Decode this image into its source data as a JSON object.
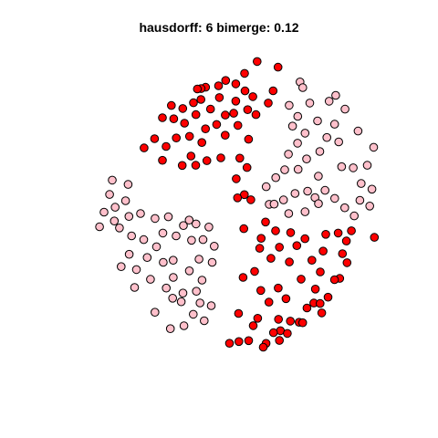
{
  "chart_data": {
    "type": "scatter",
    "title": "hausdorff: 6 bimerge: 0.12",
    "xlabel": "",
    "ylabel": "",
    "axes_shown": false,
    "grid": false,
    "legend": "none",
    "xlim": [
      0,
      1
    ],
    "ylim": [
      0,
      1
    ],
    "series": [
      {
        "color": "#ff0000",
        "points": [
          [
            0.6155,
            0.9768
          ],
          [
            0.6786,
            0.9595
          ],
          [
            0.5774,
            0.9407
          ],
          [
            0.5203,
            0.919
          ],
          [
            0.4987,
            0.9031
          ],
          [
            0.5508,
            0.9089
          ],
          [
            0.4595,
            0.8987
          ],
          [
            0.4458,
            0.8945
          ],
          [
            0.4345,
            0.8933
          ],
          [
            0.5787,
            0.8874
          ],
          [
            0.6639,
            0.8879
          ],
          [
            0.5012,
            0.8672
          ],
          [
            0.6025,
            0.8701
          ],
          [
            0.4452,
            0.8614
          ],
          [
            0.5507,
            0.8564
          ],
          [
            0.4226,
            0.8514
          ],
          [
            0.6492,
            0.8507
          ],
          [
            0.3558,
            0.8431
          ],
          [
            0.3904,
            0.8342
          ],
          [
            0.4742,
            0.8324
          ],
          [
            0.5868,
            0.8304
          ],
          [
            0.5446,
            0.8197
          ],
          [
            0.612,
            0.8155
          ],
          [
            0.4302,
            0.8155
          ],
          [
            0.519,
            0.8141
          ],
          [
            0.3286,
            0.806
          ],
          [
            0.3629,
            0.8027
          ],
          [
            0.3955,
            0.7896
          ],
          [
            0.4929,
            0.7857
          ],
          [
            0.5572,
            0.7828
          ],
          [
            0.4592,
            0.7723
          ],
          [
            0.5189,
            0.7529
          ],
          [
            0.4108,
            0.7497
          ],
          [
            0.305,
            0.7424
          ],
          [
            0.3707,
            0.7445
          ],
          [
            0.5895,
            0.7407
          ],
          [
            0.4481,
            0.7307
          ],
          [
            0.2732,
            0.7143
          ],
          [
            0.3399,
            0.7187
          ],
          [
            0.4153,
            0.6897
          ],
          [
            0.3286,
            0.6766
          ],
          [
            0.5054,
            0.6841
          ],
          [
            0.5631,
            0.6835
          ],
          [
            0.4632,
            0.6755
          ],
          [
            0.3888,
            0.6613
          ],
          [
            0.5848,
            0.6548
          ],
          [
            0.4295,
            0.6618
          ],
          [
            0.5521,
            0.6209
          ],
          [
            0.5768,
            0.5725
          ],
          [
            0.5562,
            0.5629
          ],
          [
            0.5965,
            0.557
          ],
          [
            0.6408,
            0.4896
          ],
          [
            0.5751,
            0.4693
          ],
          [
            0.6713,
            0.4629
          ],
          [
            0.7169,
            0.4574
          ],
          [
            0.9008,
            0.4628
          ],
          [
            0.8608,
            0.4559
          ],
          [
            0.9705,
            0.4429
          ],
          [
            0.8232,
            0.452
          ],
          [
            0.6276,
            0.4399
          ],
          [
            0.7601,
            0.4389
          ],
          [
            0.683,
            0.4131
          ],
          [
            0.8855,
            0.4319
          ],
          [
            0.6233,
            0.4097
          ],
          [
            0.7355,
            0.4177
          ],
          [
            0.8152,
            0.4011
          ],
          [
            0.8737,
            0.3933
          ],
          [
            0.6573,
            0.3793
          ],
          [
            0.7812,
            0.3733
          ],
          [
            0.713,
            0.3682
          ],
          [
            0.8877,
            0.3659
          ],
          [
            0.6076,
            0.3395
          ],
          [
            0.8066,
            0.338
          ],
          [
            0.573,
            0.3213
          ],
          [
            0.7487,
            0.3161
          ],
          [
            0.8655,
            0.3184
          ],
          [
            0.8496,
            0.3145
          ],
          [
            0.7917,
            0.2859
          ],
          [
            0.6793,
            0.2889
          ],
          [
            0.6266,
            0.2816
          ],
          [
            0.7029,
            0.2568
          ],
          [
            0.8301,
            0.2613
          ],
          [
            0.6512,
            0.2462
          ],
          [
            0.7871,
            0.2434
          ],
          [
            0.8061,
            0.2421
          ],
          [
            0.7662,
            0.2286
          ],
          [
            0.811,
            0.2135
          ],
          [
            0.5592,
            0.2119
          ],
          [
            0.617,
            0.1973
          ],
          [
            0.6802,
            0.1943
          ],
          [
            0.7426,
            0.185
          ],
          [
            0.7161,
            0.1886
          ],
          [
            0.7534,
            0.1837
          ],
          [
            0.6036,
            0.1747
          ],
          [
            0.6858,
            0.1595
          ],
          [
            0.6649,
            0.1535
          ],
          [
            0.707,
            0.1512
          ],
          [
            0.5897,
            0.1295
          ],
          [
            0.6425,
            0.1211
          ],
          [
            0.683,
            0.13
          ],
          [
            0.5319,
            0.1212
          ],
          [
            0.6341,
            0.1095
          ],
          [
            0.5603,
            0.1266
          ]
        ]
      },
      {
        "color": "#ffc0cb",
        "points": [
          [
            0.7453,
            0.9146
          ],
          [
            0.7536,
            0.8976
          ],
          [
            0.8534,
            0.8739
          ],
          [
            0.8334,
            0.8561
          ],
          [
            0.7749,
            0.8506
          ],
          [
            0.7123,
            0.8437
          ],
          [
            0.8815,
            0.8321
          ],
          [
            0.7385,
            0.8102
          ],
          [
            0.7984,
            0.7964
          ],
          [
            0.8499,
            0.7864
          ],
          [
            0.7227,
            0.7807
          ],
          [
            0.9209,
            0.7657
          ],
          [
            0.7604,
            0.7592
          ],
          [
            0.8265,
            0.7461
          ],
          [
            0.8624,
            0.7326
          ],
          [
            0.7379,
            0.7287
          ],
          [
            0.9681,
            0.7164
          ],
          [
            0.8052,
            0.7036
          ],
          [
            0.7102,
            0.6955
          ],
          [
            0.7652,
            0.681
          ],
          [
            0.9489,
            0.6617
          ],
          [
            0.8713,
            0.6574
          ],
          [
            0.6988,
            0.6479
          ],
          [
            0.7396,
            0.6493
          ],
          [
            0.9064,
            0.6539
          ],
          [
            0.8009,
            0.6286
          ],
          [
            0.6717,
            0.624
          ],
          [
            0.9305,
            0.6063
          ],
          [
            0.6429,
            0.5966
          ],
          [
            0.8211,
            0.5855
          ],
          [
            0.9631,
            0.5891
          ],
          [
            0.7681,
            0.5831
          ],
          [
            0.7302,
            0.5763
          ],
          [
            0.7905,
            0.5638
          ],
          [
            0.6954,
            0.5564
          ],
          [
            0.9265,
            0.5553
          ],
          [
            0.8502,
            0.5611
          ],
          [
            0.6519,
            0.5433
          ],
          [
            0.6669,
            0.5438
          ],
          [
            0.8011,
            0.5452
          ],
          [
            0.8808,
            0.5328
          ],
          [
            0.9564,
            0.538
          ],
          [
            0.7606,
            0.5204
          ],
          [
            0.9095,
            0.5079
          ],
          [
            0.7111,
            0.5151
          ],
          [
            0.1768,
            0.6166
          ],
          [
            0.2249,
            0.6037
          ],
          [
            0.1689,
            0.5732
          ],
          [
            0.2171,
            0.5541
          ],
          [
            0.1857,
            0.5343
          ],
          [
            0.1519,
            0.5195
          ],
          [
            0.2273,
            0.5063
          ],
          [
            0.1832,
            0.4925
          ],
          [
            0.1384,
            0.4752
          ],
          [
            0.1987,
            0.4714
          ],
          [
            0.2625,
            0.5152
          ],
          [
            0.3063,
            0.5002
          ],
          [
            0.3466,
            0.5053
          ],
          [
            0.4096,
            0.4954
          ],
          [
            0.3922,
            0.4787
          ],
          [
            0.4305,
            0.4836
          ],
          [
            0.4694,
            0.4742
          ],
          [
            0.3302,
            0.4559
          ],
          [
            0.3702,
            0.4474
          ],
          [
            0.4168,
            0.434
          ],
          [
            0.4517,
            0.4361
          ],
          [
            0.2353,
            0.4473
          ],
          [
            0.2722,
            0.4361
          ],
          [
            0.3109,
            0.4145
          ],
          [
            0.4855,
            0.416
          ],
          [
            0.2281,
            0.3913
          ],
          [
            0.2826,
            0.3818
          ],
          [
            0.4394,
            0.3768
          ],
          [
            0.3613,
            0.3733
          ],
          [
            0.3311,
            0.367
          ],
          [
            0.4793,
            0.3671
          ],
          [
            0.204,
            0.3539
          ],
          [
            0.2501,
            0.3452
          ],
          [
            0.4102,
            0.3412
          ],
          [
            0.2925,
            0.3156
          ],
          [
            0.3615,
            0.3212
          ],
          [
            0.4487,
            0.313
          ],
          [
            0.2445,
            0.2908
          ],
          [
            0.3403,
            0.2889
          ],
          [
            0.3909,
            0.2736
          ],
          [
            0.4314,
            0.2792
          ],
          [
            0.3597,
            0.2583
          ],
          [
            0.3856,
            0.2475
          ],
          [
            0.4426,
            0.2439
          ],
          [
            0.4766,
            0.2355
          ],
          [
            0.3061,
            0.2155
          ],
          [
            0.4222,
            0.2093
          ],
          [
            0.4552,
            0.1898
          ],
          [
            0.3528,
            0.1657
          ],
          [
            0.394,
            0.1745
          ]
        ]
      }
    ]
  }
}
